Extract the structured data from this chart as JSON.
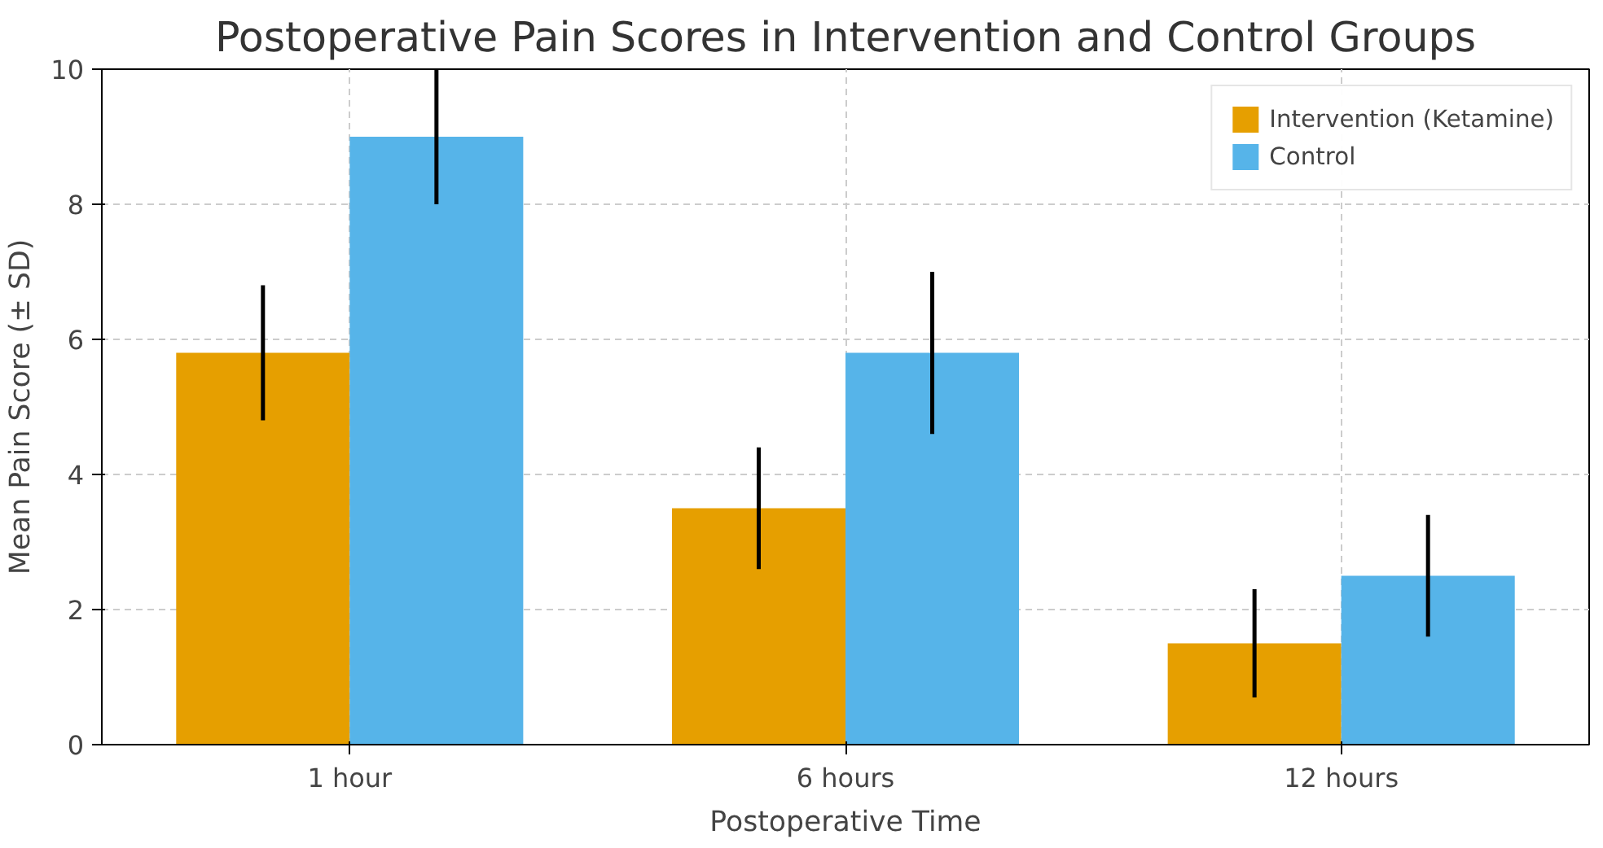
{
  "chart_data": {
    "type": "bar",
    "title": "Postoperative Pain Scores in Intervention and Control Groups",
    "xlabel": "Postoperative Time",
    "ylabel": "Mean Pain Score (± SD)",
    "categories": [
      "1 hour",
      "6 hours",
      "12 hours"
    ],
    "series": [
      {
        "name": "Intervention (Ketamine)",
        "color": "#e69f00",
        "values": [
          5.8,
          3.5,
          1.5
        ],
        "errors": [
          1.0,
          0.9,
          0.8
        ]
      },
      {
        "name": "Control",
        "color": "#56b4e9",
        "values": [
          9.0,
          5.8,
          2.5
        ],
        "errors": [
          1.0,
          1.2,
          0.9
        ]
      }
    ],
    "ylim": [
      0,
      10
    ],
    "yticks": [
      0,
      2,
      4,
      6,
      8,
      10
    ],
    "grid": true,
    "legend": "top right"
  }
}
